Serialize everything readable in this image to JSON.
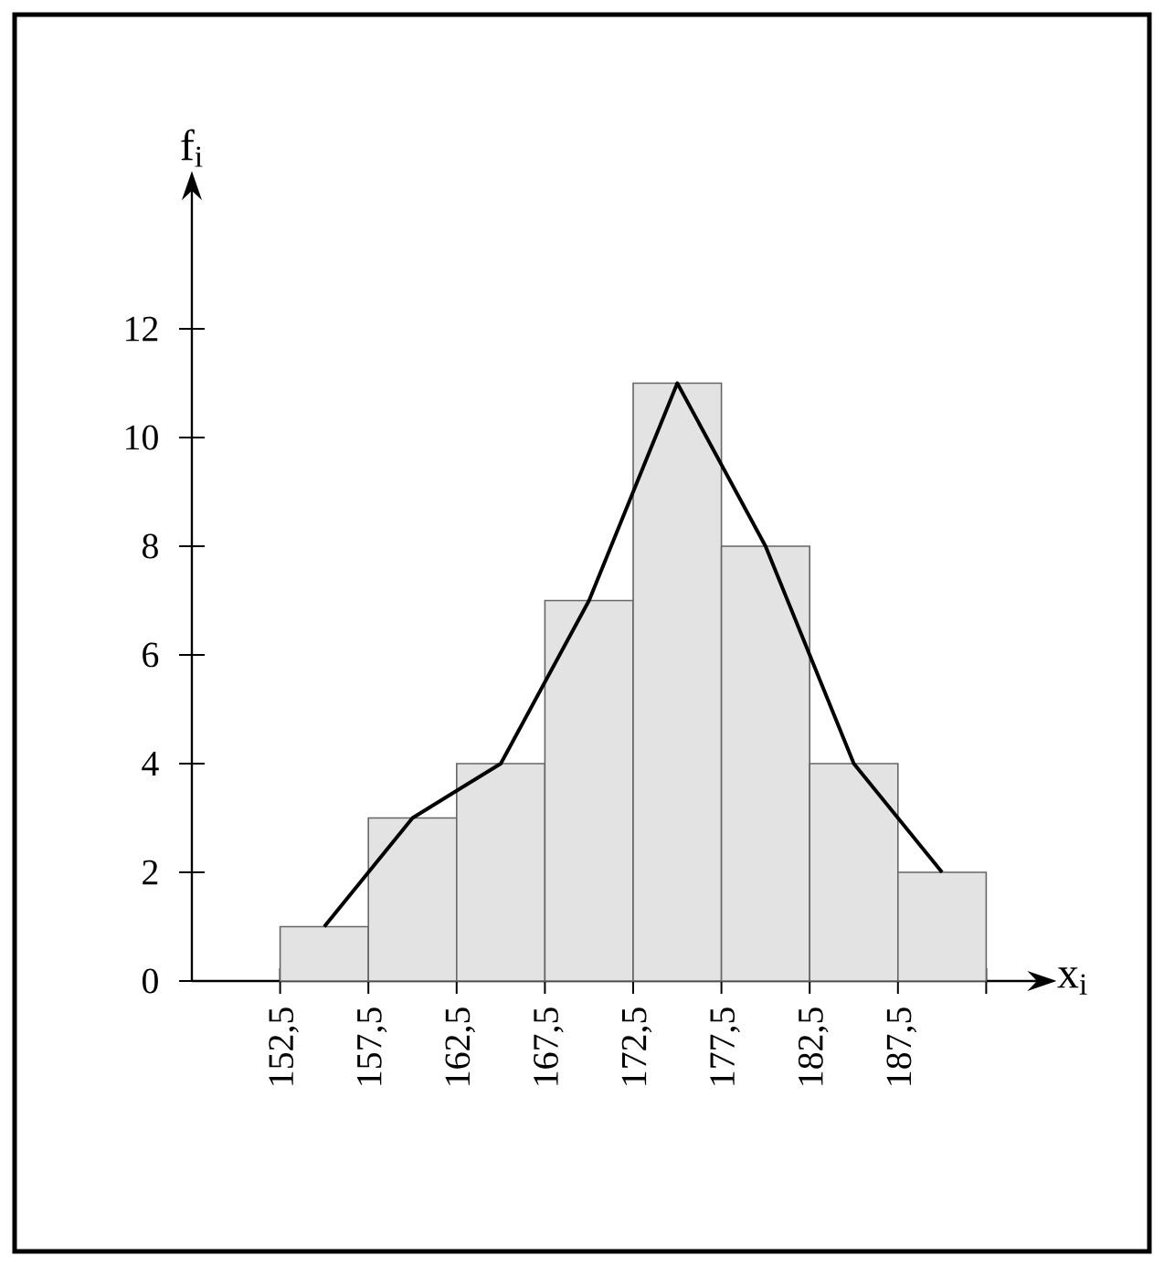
{
  "chart_data": {
    "type": "histogram",
    "bins": [
      152.5,
      157.5,
      162.5,
      167.5,
      172.5,
      177.5,
      182.5,
      187.5,
      192.5
    ],
    "values": [
      1,
      3,
      4,
      7,
      11,
      8,
      4,
      2
    ],
    "color": "#e3e3e3",
    "series": [
      {
        "type": "line",
        "x": [
          155,
          160,
          165,
          170,
          175,
          180,
          185,
          190
        ],
        "values": [
          1,
          3,
          4,
          7,
          11,
          8,
          4,
          2
        ],
        "color": "#000000"
      }
    ],
    "xlabel": "x$_{i}$",
    "ylabel": "f$_{i}$",
    "xlim": [
      147.5,
      195.4
    ],
    "ylim": [
      0,
      14.55
    ],
    "xticks": [
      {
        "value": 152.5,
        "label": "152,5"
      },
      {
        "value": 157.5,
        "label": "157,5"
      },
      {
        "value": 162.5,
        "label": "162,5"
      },
      {
        "value": 167.5,
        "label": "167,5"
      },
      {
        "value": 172.5,
        "label": "172,5"
      },
      {
        "value": 177.5,
        "label": "177,5"
      },
      {
        "value": 182.5,
        "label": "182,5"
      },
      {
        "value": 187.5,
        "label": "187,5"
      },
      {
        "value": 192.5,
        "label": null
      }
    ],
    "yticks": [
      0,
      2,
      4,
      6,
      8,
      10,
      12
    ]
  }
}
